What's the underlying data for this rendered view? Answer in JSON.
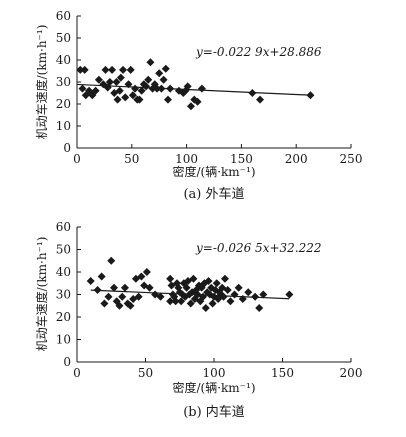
{
  "chart_data": [
    {
      "type": "scatter",
      "caption": "(a) 外车道",
      "xlabel": "密度/(辆·km⁻¹)",
      "ylabel": "机动车速度/(km·h⁻¹)",
      "xlim": [
        0,
        250
      ],
      "ylim": [
        0,
        60
      ],
      "xticks": [
        "0",
        "50",
        "100",
        "150",
        "200",
        "250"
      ],
      "yticks": [
        "0",
        "10",
        "20",
        "30",
        "40",
        "50",
        "60"
      ],
      "grid": false,
      "marker": "diamond",
      "equation": "y=-0.022 9x+28.886",
      "trendline": {
        "slope": -0.0229,
        "intercept": 28.886,
        "x": [
          0,
          215
        ]
      },
      "points": [
        [
          3,
          35.5
        ],
        [
          5,
          27
        ],
        [
          7,
          35.5
        ],
        [
          8,
          24
        ],
        [
          11,
          26
        ],
        [
          14,
          24
        ],
        [
          17,
          26
        ],
        [
          20,
          31
        ],
        [
          24,
          29
        ],
        [
          26,
          35.5
        ],
        [
          28,
          27.5
        ],
        [
          30,
          30
        ],
        [
          32,
          35.5
        ],
        [
          34,
          25
        ],
        [
          36,
          30
        ],
        [
          37,
          22
        ],
        [
          39,
          26
        ],
        [
          40,
          32
        ],
        [
          42,
          35.5
        ],
        [
          44,
          23
        ],
        [
          47,
          29
        ],
        [
          49,
          35.5
        ],
        [
          51,
          24
        ],
        [
          53,
          27
        ],
        [
          55,
          22
        ],
        [
          57,
          22
        ],
        [
          59,
          26
        ],
        [
          61,
          29
        ],
        [
          63,
          28
        ],
        [
          65,
          31
        ],
        [
          67,
          39
        ],
        [
          69,
          27
        ],
        [
          71,
          29
        ],
        [
          73,
          27
        ],
        [
          75,
          34
        ],
        [
          77,
          27
        ],
        [
          79,
          31
        ],
        [
          81,
          36
        ],
        [
          83,
          22
        ],
        [
          85,
          27
        ],
        [
          93,
          26
        ],
        [
          97,
          25
        ],
        [
          99,
          26
        ],
        [
          101,
          28
        ],
        [
          104,
          19
        ],
        [
          107,
          22
        ],
        [
          110,
          21
        ],
        [
          114,
          27
        ],
        [
          160,
          25
        ],
        [
          167,
          22
        ],
        [
          213,
          24
        ]
      ]
    },
    {
      "type": "scatter",
      "caption": "(b) 内车道",
      "xlabel": "密度/(辆·km⁻¹)",
      "ylabel": "机动车速度/(km·h⁻¹)",
      "xlim": [
        0,
        200
      ],
      "ylim": [
        0,
        60
      ],
      "xticks": [
        "0",
        "50",
        "100",
        "150",
        "200"
      ],
      "yticks": [
        "0",
        "10",
        "20",
        "30",
        "40",
        "50",
        "60"
      ],
      "grid": false,
      "marker": "diamond",
      "equation": "y=-0.026 5x+32.222",
      "trendline": {
        "slope": -0.0265,
        "intercept": 32.222,
        "x": [
          10,
          155
        ]
      },
      "points": [
        [
          10,
          36
        ],
        [
          15,
          32
        ],
        [
          18,
          38
        ],
        [
          20,
          26
        ],
        [
          23,
          29
        ],
        [
          25,
          45
        ],
        [
          27,
          33
        ],
        [
          29,
          27
        ],
        [
          31,
          25
        ],
        [
          33,
          29
        ],
        [
          35,
          33
        ],
        [
          37,
          26
        ],
        [
          39,
          25
        ],
        [
          41,
          28
        ],
        [
          43,
          37
        ],
        [
          45,
          29
        ],
        [
          47,
          38
        ],
        [
          49,
          34
        ],
        [
          51,
          40
        ],
        [
          53,
          33
        ],
        [
          57,
          30
        ],
        [
          61,
          29
        ],
        [
          68,
          27
        ],
        [
          68,
          37
        ],
        [
          69,
          34
        ],
        [
          70,
          30
        ],
        [
          71,
          29
        ],
        [
          72,
          27
        ],
        [
          73,
          35
        ],
        [
          74,
          33
        ],
        [
          75,
          31
        ],
        [
          76,
          27
        ],
        [
          77,
          30
        ],
        [
          78,
          35
        ],
        [
          79,
          29
        ],
        [
          80,
          33
        ],
        [
          81,
          36
        ],
        [
          82,
          30
        ],
        [
          83,
          26
        ],
        [
          84,
          31
        ],
        [
          85,
          37
        ],
        [
          86,
          28
        ],
        [
          87,
          32
        ],
        [
          88,
          30
        ],
        [
          89,
          34
        ],
        [
          90,
          27
        ],
        [
          91,
          33
        ],
        [
          92,
          29
        ],
        [
          93,
          35
        ],
        [
          94,
          24
        ],
        [
          95,
          31
        ],
        [
          96,
          36
        ],
        [
          97,
          30
        ],
        [
          98,
          33
        ],
        [
          99,
          26
        ],
        [
          100,
          29
        ],
        [
          101,
          32
        ],
        [
          102,
          35
        ],
        [
          103,
          28
        ],
        [
          104,
          31
        ],
        [
          105,
          30
        ],
        [
          106,
          33
        ],
        [
          107,
          29
        ],
        [
          108,
          37
        ],
        [
          110,
          32
        ],
        [
          112,
          27
        ],
        [
          115,
          30
        ],
        [
          118,
          33
        ],
        [
          121,
          28
        ],
        [
          125,
          31
        ],
        [
          130,
          29
        ],
        [
          133,
          24
        ],
        [
          136,
          30
        ],
        [
          155,
          30
        ]
      ]
    }
  ]
}
